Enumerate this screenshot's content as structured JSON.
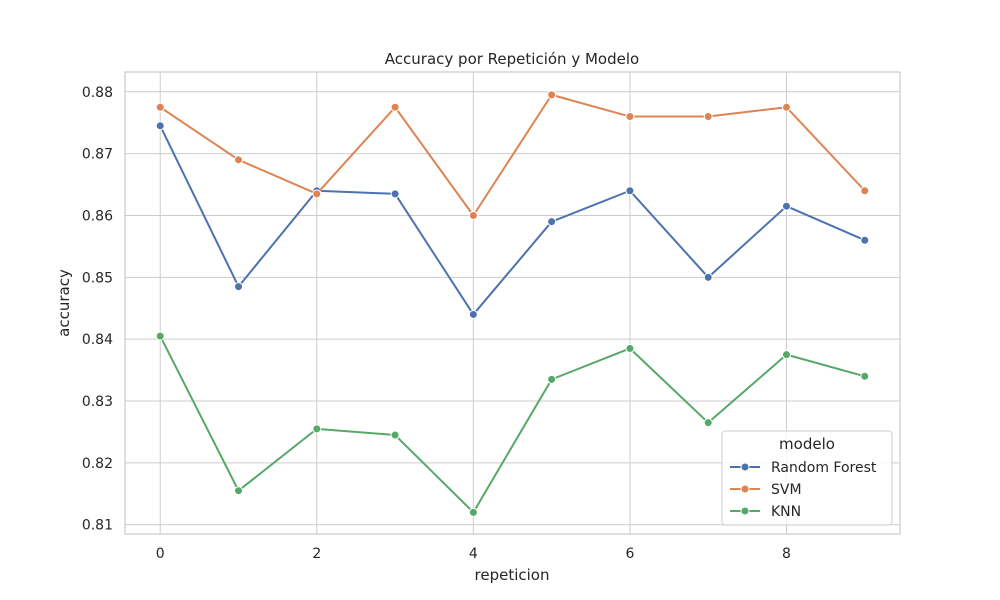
{
  "chart_data": {
    "type": "line",
    "title": "Accuracy por Repetición y Modelo",
    "xlabel": "repeticion",
    "ylabel": "accuracy",
    "x": [
      0,
      1,
      2,
      3,
      4,
      5,
      6,
      7,
      8,
      9
    ],
    "xticks": [
      0,
      2,
      4,
      6,
      8
    ],
    "xtick_labels": [
      "0",
      "2",
      "4",
      "6",
      "8"
    ],
    "xlim": [
      -0.45,
      9.45
    ],
    "yticks": [
      0.81,
      0.82,
      0.83,
      0.84,
      0.85,
      0.86,
      0.87,
      0.88
    ],
    "ytick_labels": [
      "0.81",
      "0.82",
      "0.83",
      "0.84",
      "0.85",
      "0.86",
      "0.87",
      "0.88"
    ],
    "ylim": [
      0.8085,
      0.8832
    ],
    "grid": true,
    "legend": {
      "title": "modelo",
      "position": "lower-right"
    },
    "series": [
      {
        "name": "Random Forest",
        "color": "#4c72b0",
        "values": [
          0.8745,
          0.8485,
          0.864,
          0.8635,
          0.844,
          0.859,
          0.864,
          0.85,
          0.8615,
          0.856
        ]
      },
      {
        "name": "SVM",
        "color": "#dd8452",
        "values": [
          0.8775,
          0.869,
          0.8635,
          0.8775,
          0.86,
          0.8795,
          0.876,
          0.876,
          0.8775,
          0.864
        ]
      },
      {
        "name": "KNN",
        "color": "#55a868",
        "values": [
          0.8405,
          0.8155,
          0.8255,
          0.8245,
          0.812,
          0.8335,
          0.8385,
          0.8265,
          0.8375,
          0.834
        ]
      }
    ]
  }
}
